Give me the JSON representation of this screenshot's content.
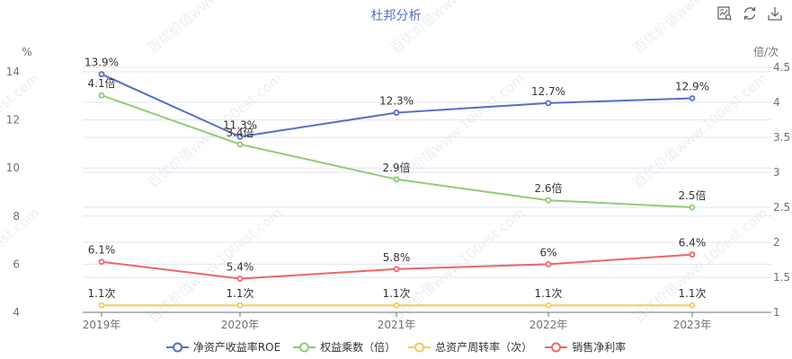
{
  "title": "杜邦分析",
  "toolbox": {
    "icons": [
      "data-view-icon",
      "restore-icon",
      "save-image-icon"
    ]
  },
  "axis": {
    "left_unit": "%",
    "right_unit": "倍/次",
    "left_ticks": [
      "4",
      "6",
      "8",
      "10",
      "12",
      "14"
    ],
    "right_ticks": [
      "1",
      "1.5",
      "2",
      "2.5",
      "3",
      "3.5",
      "4",
      "4.5"
    ],
    "x_ticks": [
      "2019年",
      "2020年",
      "2021年",
      "2022年",
      "2023年"
    ]
  },
  "legend": [
    {
      "label": "净资产收益率ROE",
      "color": "#5470c6"
    },
    {
      "label": "权益乘数（倍）",
      "color": "#91cc75"
    },
    {
      "label": "总资产周转率（次）",
      "color": "#fac858"
    },
    {
      "label": "销售净利率",
      "color": "#ee6666"
    }
  ],
  "labels": {
    "roe": [
      "13.9%",
      "11.3%",
      "12.3%",
      "12.7%",
      "12.9%"
    ],
    "em": [
      "4.1倍",
      "3.4倍",
      "2.9倍",
      "2.6倍",
      "2.5倍"
    ],
    "tat": [
      "1.1次",
      "1.1次",
      "1.1次",
      "1.1次",
      "1.1次"
    ],
    "npm": [
      "6.1%",
      "5.4%",
      "5.8%",
      "6%",
      "6.4%"
    ]
  },
  "watermark": "百优价值www.100est.com",
  "chart_data": {
    "type": "line",
    "title": "杜邦分析",
    "categories": [
      "2019年",
      "2020年",
      "2021年",
      "2022年",
      "2023年"
    ],
    "series": [
      {
        "name": "净资产收益率ROE",
        "axis": "left",
        "unit": "%",
        "values": [
          13.9,
          11.3,
          12.3,
          12.7,
          12.9
        ],
        "color": "#5470c6"
      },
      {
        "name": "权益乘数（倍）",
        "axis": "right",
        "unit": "倍",
        "values": [
          4.1,
          3.4,
          2.9,
          2.6,
          2.5
        ],
        "color": "#91cc75"
      },
      {
        "name": "总资产周转率（次）",
        "axis": "right",
        "unit": "次",
        "values": [
          1.1,
          1.1,
          1.1,
          1.1,
          1.1
        ],
        "color": "#fac858"
      },
      {
        "name": "销售净利率",
        "axis": "left",
        "unit": "%",
        "values": [
          6.1,
          5.4,
          5.8,
          6.0,
          6.4
        ],
        "color": "#ee6666"
      }
    ],
    "ylabel_left": "%",
    "ylabel_right": "倍/次",
    "ylim_left": [
      4,
      14
    ],
    "ylim_right": [
      1,
      4.5
    ],
    "grid": true,
    "legend_position": "bottom"
  }
}
